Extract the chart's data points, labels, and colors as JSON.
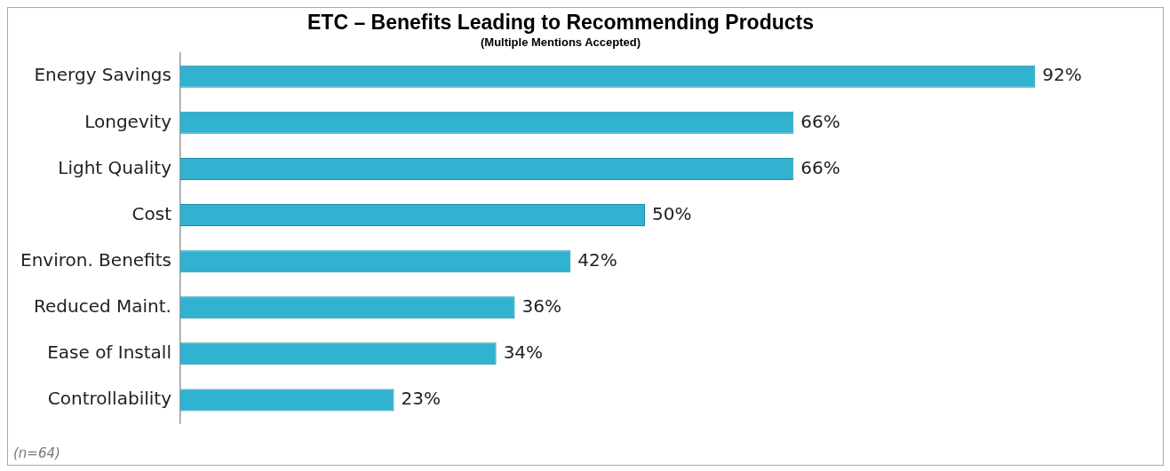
{
  "chart_data": {
    "type": "bar",
    "orientation": "horizontal",
    "title": "ETC – Benefits Leading to Recommending Products",
    "subtitle": "(Multiple Mentions Accepted)",
    "categories": [
      "Energy Savings",
      "Longevity",
      "Light Quality",
      "Cost",
      "Environ. Benefits",
      "Reduced Maint.",
      "Ease of Install",
      "Controllability"
    ],
    "values": [
      92,
      66,
      66,
      50,
      42,
      36,
      34,
      23
    ],
    "value_labels": [
      "92%",
      "66%",
      "66%",
      "50%",
      "42%",
      "36%",
      "34%",
      "23%"
    ],
    "color": "#31b2d0",
    "annotations": [
      "(n=64)"
    ]
  }
}
